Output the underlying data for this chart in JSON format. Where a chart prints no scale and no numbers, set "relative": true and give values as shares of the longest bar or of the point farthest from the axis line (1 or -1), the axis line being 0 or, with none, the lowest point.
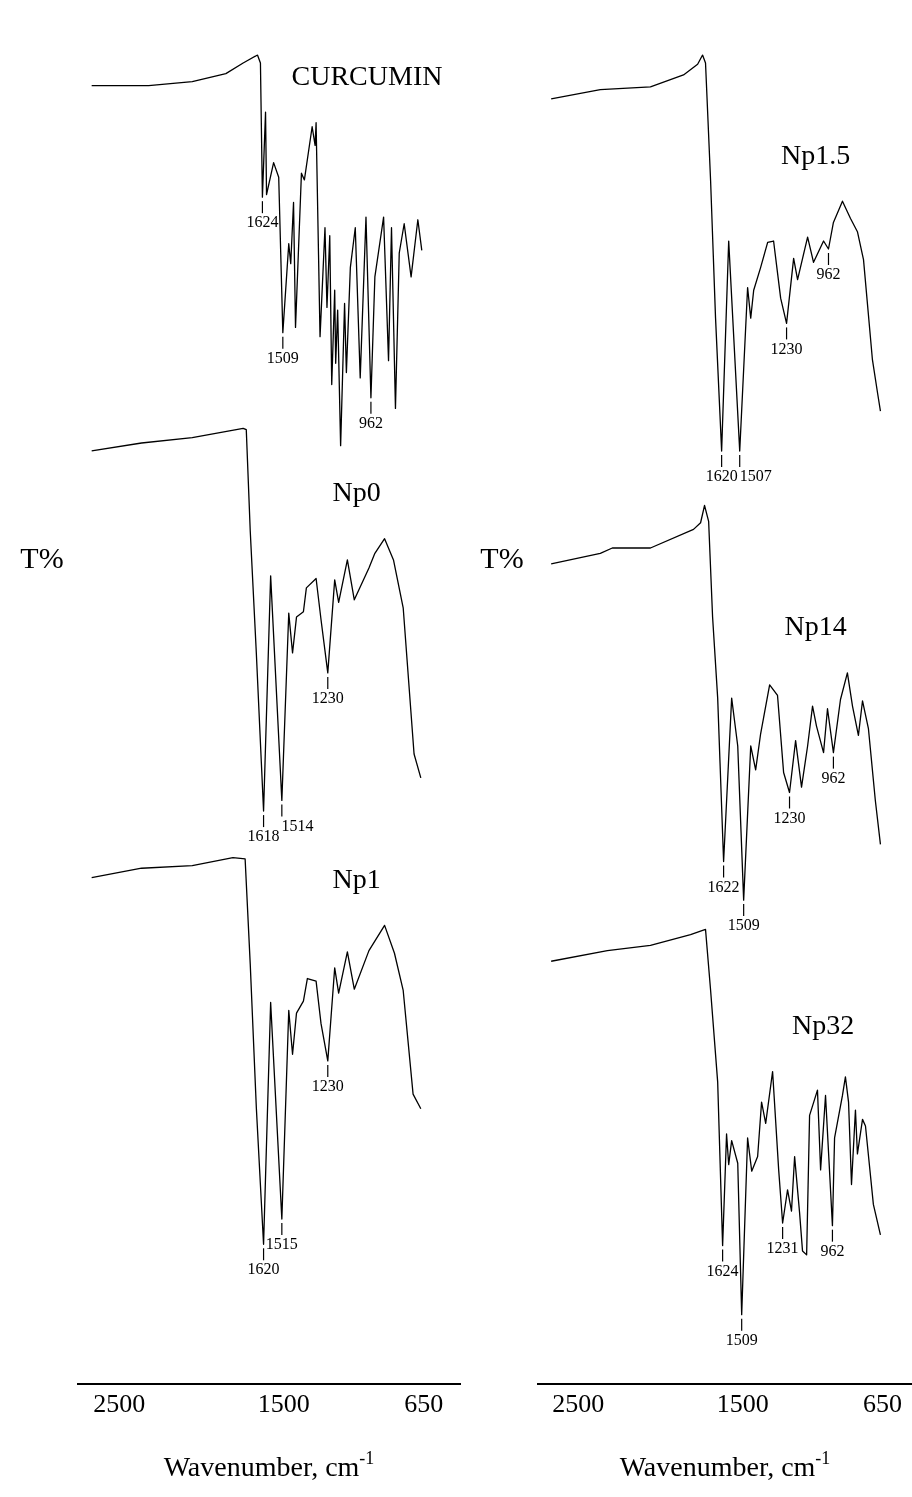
{
  "chart_data": [
    {
      "type": "line",
      "xlabel": "Wavenumber, cm$^{-1}$",
      "ylabel": "T%",
      "relative": true,
      "xlim": [
        2750,
        430
      ],
      "xticks": [
        2500,
        1500,
        650
      ],
      "marker": "none",
      "series": [
        {
          "name": "CURCUMIN",
          "color": "#000000",
          "x": [
            2667,
            2321,
            2056,
            1852,
            1747,
            1660,
            1642,
            1630,
            1611,
            1605,
            1562,
            1531,
            1506,
            1470,
            1458,
            1441,
            1429,
            1393,
            1375,
            1328,
            1310,
            1304,
            1280,
            1250,
            1238,
            1221,
            1209,
            1191,
            1185,
            1173,
            1155,
            1131,
            1120,
            1096,
            1066,
            1036,
            1001,
            971,
            947,
            894,
            864,
            846,
            822,
            799,
            769,
            727,
            686,
            662
          ],
          "values": [
            0.977,
            0.977,
            0.98,
            0.986,
            0.994,
            1,
            0.994,
            0.893,
            0.957,
            0.895,
            0.919,
            0.908,
            0.791,
            0.858,
            0.843,
            0.889,
            0.795,
            0.911,
            0.906,
            0.946,
            0.932,
            0.949,
            0.788,
            0.87,
            0.81,
            0.864,
            0.752,
            0.823,
            0.768,
            0.808,
            0.706,
            0.813,
            0.761,
            0.84,
            0.87,
            0.757,
            0.878,
            0.742,
            0.833,
            0.878,
            0.77,
            0.87,
            0.734,
            0.851,
            0.873,
            0.833,
            0.876,
            0.853
          ]
        },
        {
          "name": "Np0",
          "color": "#000000",
          "x": [
            2667,
            2364,
            2056,
            1747,
            1728,
            1704,
            1667,
            1623,
            1580,
            1512,
            1470,
            1447,
            1423,
            1381,
            1363,
            1304,
            1274,
            1233,
            1191,
            1167,
            1114,
            1072,
            983,
            947,
            888,
            834,
            775,
            709,
            668
          ],
          "values": [
            0.702,
            0.708,
            0.712,
            0.719,
            0.718,
            0.642,
            0.55,
            0.431,
            0.608,
            0.439,
            0.58,
            0.55,
            0.577,
            0.581,
            0.599,
            0.606,
            0.575,
            0.535,
            0.605,
            0.588,
            0.62,
            0.59,
            0.614,
            0.625,
            0.636,
            0.62,
            0.584,
            0.474,
            0.456
          ]
        },
        {
          "name": "Np1",
          "color": "#000000",
          "x": [
            2667,
            2364,
            2056,
            1809,
            1735,
            1704,
            1667,
            1623,
            1580,
            1512,
            1470,
            1447,
            1423,
            1381,
            1357,
            1304,
            1274,
            1233,
            1191,
            1167,
            1114,
            1072,
            983,
            888,
            828,
            775,
            715,
            668
          ],
          "values": [
            0.381,
            0.388,
            0.39,
            0.396,
            0.395,
            0.316,
            0.208,
            0.105,
            0.287,
            0.124,
            0.281,
            0.248,
            0.279,
            0.288,
            0.305,
            0.303,
            0.271,
            0.243,
            0.313,
            0.294,
            0.325,
            0.297,
            0.326,
            0.345,
            0.324,
            0.296,
            0.218,
            0.207
          ]
        }
      ],
      "annotations": [
        {
          "text": "1624",
          "x": 1630,
          "y": 0.893
        },
        {
          "text": "1509",
          "x": 1506,
          "y": 0.791
        },
        {
          "text": "962",
          "x": 971,
          "y": 0.742
        },
        {
          "text": "1618",
          "x": 1623,
          "y": 0.431
        },
        {
          "text": "1514",
          "x": 1512,
          "y": 0.439
        },
        {
          "text": "1230",
          "x": 1233,
          "y": 0.535
        },
        {
          "text": "1620",
          "x": 1623,
          "y": 0.105
        },
        {
          "text": "1515",
          "x": 1512,
          "y": 0.124
        },
        {
          "text": "1230",
          "x": 1233,
          "y": 0.243
        }
      ]
    },
    {
      "type": "line",
      "xlabel": "Wavenumber, cm$^{-1}$",
      "ylabel": "T%",
      "relative": true,
      "xlim": [
        2745,
        470
      ],
      "xticks": [
        2500,
        1500,
        650
      ],
      "marker": "none",
      "series": [
        {
          "name": "Np1.5",
          "color": "#000000",
          "x": [
            2665,
            2366,
            2061,
            1860,
            1774,
            1744,
            1726,
            1695,
            1665,
            1628,
            1585,
            1518,
            1470,
            1451,
            1433,
            1391,
            1348,
            1312,
            1269,
            1233,
            1190,
            1166,
            1105,
            1069,
            1008,
            978,
            948,
            893,
            844,
            802,
            765,
            711,
            680,
            662
          ],
          "values": [
            0.967,
            0.974,
            0.976,
            0.985,
            0.993,
            1,
            0.994,
            0.905,
            0.802,
            0.702,
            0.86,
            0.702,
            0.825,
            0.802,
            0.823,
            0.84,
            0.859,
            0.86,
            0.817,
            0.798,
            0.847,
            0.831,
            0.863,
            0.844,
            0.86,
            0.854,
            0.874,
            0.89,
            0.877,
            0.867,
            0.846,
            0.771,
            0.746,
            0.732
          ]
        },
        {
          "name": "Np14",
          "color": "#000000",
          "x": [
            2665,
            2366,
            2293,
            2061,
            1799,
            1756,
            1732,
            1707,
            1683,
            1652,
            1616,
            1567,
            1530,
            1494,
            1451,
            1421,
            1391,
            1336,
            1288,
            1251,
            1215,
            1178,
            1142,
            1105,
            1075,
            1051,
            1008,
            984,
            948,
            905,
            863,
            832,
            796,
            771,
            735,
            693,
            662
          ],
          "values": [
            0.617,
            0.625,
            0.629,
            0.629,
            0.643,
            0.648,
            0.661,
            0.649,
            0.577,
            0.516,
            0.393,
            0.516,
            0.48,
            0.364,
            0.48,
            0.462,
            0.489,
            0.526,
            0.518,
            0.46,
            0.445,
            0.484,
            0.449,
            0.48,
            0.51,
            0.495,
            0.475,
            0.508,
            0.475,
            0.515,
            0.535,
            0.51,
            0.488,
            0.514,
            0.493,
            0.439,
            0.406
          ]
        },
        {
          "name": "Np32",
          "color": "#000000",
          "x": [
            2665,
            2323,
            2061,
            1817,
            1726,
            1695,
            1652,
            1622,
            1598,
            1585,
            1567,
            1530,
            1506,
            1470,
            1445,
            1409,
            1385,
            1360,
            1318,
            1281,
            1257,
            1227,
            1203,
            1184,
            1154,
            1136,
            1111,
            1093,
            1045,
            1026,
            996,
            954,
            941,
            893,
            875,
            856,
            838,
            814,
            802,
            771,
            753,
            705,
            662
          ],
          "values": [
            0.318,
            0.326,
            0.33,
            0.338,
            0.342,
            0.296,
            0.227,
            0.104,
            0.188,
            0.165,
            0.183,
            0.166,
            0.052,
            0.185,
            0.16,
            0.171,
            0.212,
            0.196,
            0.235,
            0.161,
            0.121,
            0.146,
            0.13,
            0.171,
            0.129,
            0.1,
            0.097,
            0.202,
            0.221,
            0.161,
            0.217,
            0.119,
            0.185,
            0.217,
            0.231,
            0.212,
            0.15,
            0.206,
            0.173,
            0.199,
            0.194,
            0.135,
            0.112
          ]
        }
      ],
      "annotations": [
        {
          "text": "1620",
          "x": 1628,
          "y": 0.702
        },
        {
          "text": "1507",
          "x": 1518,
          "y": 0.702
        },
        {
          "text": "1230",
          "x": 1233,
          "y": 0.798
        },
        {
          "text": "962",
          "x": 978,
          "y": 0.854
        },
        {
          "text": "1622",
          "x": 1616,
          "y": 0.393
        },
        {
          "text": "1509",
          "x": 1494,
          "y": 0.364
        },
        {
          "text": "1230",
          "x": 1215,
          "y": 0.445
        },
        {
          "text": "962",
          "x": 948,
          "y": 0.475
        },
        {
          "text": "1624",
          "x": 1622,
          "y": 0.104
        },
        {
          "text": "1509",
          "x": 1506,
          "y": 0.052
        },
        {
          "text": "1231",
          "x": 1257,
          "y": 0.121
        },
        {
          "text": "962",
          "x": 954,
          "y": 0.119
        }
      ]
    }
  ]
}
